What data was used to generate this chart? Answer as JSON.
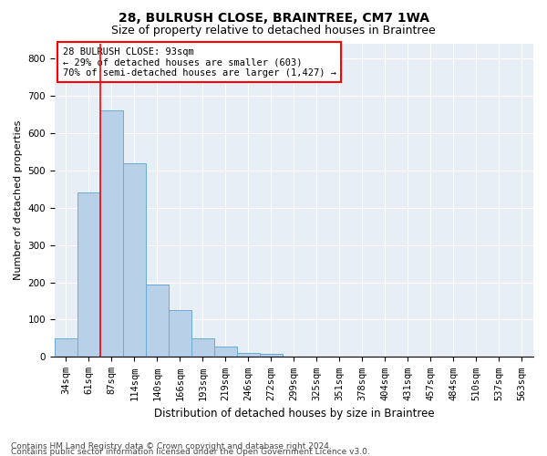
{
  "title1": "28, BULRUSH CLOSE, BRAINTREE, CM7 1WA",
  "title2": "Size of property relative to detached houses in Braintree",
  "xlabel": "Distribution of detached houses by size in Braintree",
  "ylabel": "Number of detached properties",
  "bins": [
    "34sqm",
    "61sqm",
    "87sqm",
    "114sqm",
    "140sqm",
    "166sqm",
    "193sqm",
    "219sqm",
    "246sqm",
    "272sqm",
    "299sqm",
    "325sqm",
    "351sqm",
    "378sqm",
    "404sqm",
    "431sqm",
    "457sqm",
    "484sqm",
    "510sqm",
    "537sqm",
    "563sqm"
  ],
  "bar_heights": [
    50,
    440,
    660,
    520,
    195,
    125,
    50,
    27,
    10,
    8,
    2,
    0,
    0,
    0,
    0,
    0,
    0,
    0,
    0,
    0,
    0
  ],
  "bar_color": "#b8d0e8",
  "bar_edge_color": "#6aaad4",
  "vline_color": "red",
  "vline_x": 1.5,
  "annotation_text": "28 BULRUSH CLOSE: 93sqm\n← 29% of detached houses are smaller (603)\n70% of semi-detached houses are larger (1,427) →",
  "annotation_box_color": "white",
  "annotation_box_edge_color": "red",
  "ylim": [
    0,
    840
  ],
  "yticks": [
    0,
    100,
    200,
    300,
    400,
    500,
    600,
    700,
    800
  ],
  "background_color": "#e8eef6",
  "grid_color": "white",
  "footer1": "Contains HM Land Registry data © Crown copyright and database right 2024.",
  "footer2": "Contains public sector information licensed under the Open Government Licence v3.0.",
  "title1_fontsize": 10,
  "title2_fontsize": 9,
  "ylabel_fontsize": 8,
  "xlabel_fontsize": 8.5,
  "annotation_fontsize": 7.5,
  "footer_fontsize": 6.5,
  "tick_fontsize": 7.5
}
